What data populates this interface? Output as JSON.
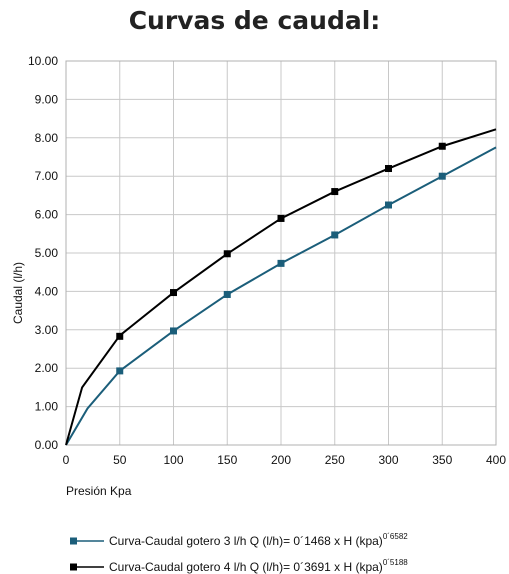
{
  "chart_data": {
    "type": "line",
    "title": "Curvas de caudal:",
    "xlabel": "Presión Kpa",
    "ylabel": "Caudal (l/h)",
    "xlim": [
      0,
      400
    ],
    "ylim": [
      0,
      10
    ],
    "x_ticks": [
      "0",
      "50",
      "100",
      "150",
      "200",
      "250",
      "300",
      "350",
      "400"
    ],
    "y_ticks": [
      "0.00",
      "1.00",
      "2.00",
      "3.00",
      "4.00",
      "5.00",
      "6.00",
      "7.00",
      "8.00",
      "9.00",
      "10.00"
    ],
    "grid": true,
    "legend_position": "bottom",
    "series": [
      {
        "name": "Curva-Caudal gotero 3 l/h",
        "formula": "Q (l/h)= 0´1468 x H (kpa)",
        "exponent": "0´6582",
        "color": "#1b5e7a",
        "line_points": [
          [
            0,
            0
          ],
          [
            20,
            0.95
          ],
          [
            50,
            1.93
          ],
          [
            100,
            2.97
          ],
          [
            150,
            3.92
          ],
          [
            200,
            4.73
          ],
          [
            250,
            5.47
          ],
          [
            300,
            6.25
          ],
          [
            350,
            7.0
          ],
          [
            400,
            7.75
          ]
        ],
        "markers": [
          [
            50,
            1.93
          ],
          [
            100,
            2.97
          ],
          [
            150,
            3.92
          ],
          [
            200,
            4.73
          ],
          [
            250,
            5.47
          ],
          [
            300,
            6.25
          ],
          [
            350,
            7.0
          ]
        ]
      },
      {
        "name": "Curva-Caudal gotero 4 l/h",
        "formula": "Q (l/h)= 0´3691 x H (kpa)",
        "exponent": "0´5188",
        "color": "#000000",
        "line_points": [
          [
            0,
            0
          ],
          [
            15,
            1.5
          ],
          [
            50,
            2.85
          ],
          [
            100,
            3.97
          ],
          [
            150,
            4.98
          ],
          [
            200,
            5.9
          ],
          [
            250,
            6.6
          ],
          [
            300,
            7.2
          ],
          [
            350,
            7.78
          ],
          [
            400,
            8.22
          ]
        ],
        "markers": [
          [
            50,
            2.83
          ],
          [
            100,
            3.97
          ],
          [
            150,
            4.98
          ],
          [
            200,
            5.9
          ],
          [
            250,
            6.6
          ],
          [
            300,
            7.2
          ],
          [
            350,
            7.78
          ]
        ]
      }
    ]
  }
}
